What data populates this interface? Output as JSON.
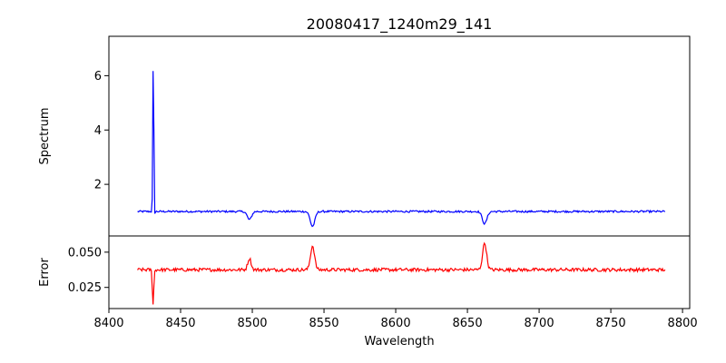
{
  "chart_data": {
    "type": "line",
    "title": "20080417_1240m29_141",
    "xlabel": "Wavelength",
    "xlim": [
      8400,
      8805
    ],
    "x_ticks": [
      8400,
      8450,
      8500,
      8550,
      8600,
      8650,
      8700,
      8750,
      8800
    ],
    "x_range": [
      8420,
      8788
    ],
    "panels": [
      {
        "id": "spectrum",
        "ylabel": "Spectrum",
        "ylim": [
          0.1,
          7.45
        ],
        "y_ticks": [
          2,
          4,
          6
        ],
        "series": [
          {
            "color": "#0000ff",
            "baseline": 1.0,
            "noise": 0.035,
            "features": [
              {
                "x": 8431.0,
                "amp": 6.1,
                "width": 0.35
              },
              {
                "x": 8431.6,
                "amp": -0.25,
                "width": 0.4
              },
              {
                "x": 8498.0,
                "amp": -0.3,
                "width": 1.5
              },
              {
                "x": 8542.0,
                "amp": -0.55,
                "width": 1.6
              },
              {
                "x": 8662.0,
                "amp": -0.45,
                "width": 1.6
              }
            ]
          }
        ]
      },
      {
        "id": "error",
        "ylabel": "Error",
        "ylim": [
          0.01,
          0.0615
        ],
        "y_ticks": [
          0.025,
          0.05
        ],
        "y_tick_labels": [
          "0.025",
          "0.050"
        ],
        "series": [
          {
            "color": "#ff0000",
            "baseline": 0.0375,
            "noise": 0.0012,
            "features": [
              {
                "x": 8430.8,
                "amp": -0.024,
                "width": 0.5
              },
              {
                "x": 8498.0,
                "amp": 0.008,
                "width": 1.2
              },
              {
                "x": 8542.0,
                "amp": 0.017,
                "width": 1.4
              },
              {
                "x": 8662.0,
                "amp": 0.019,
                "width": 1.4
              }
            ]
          }
        ]
      }
    ]
  }
}
